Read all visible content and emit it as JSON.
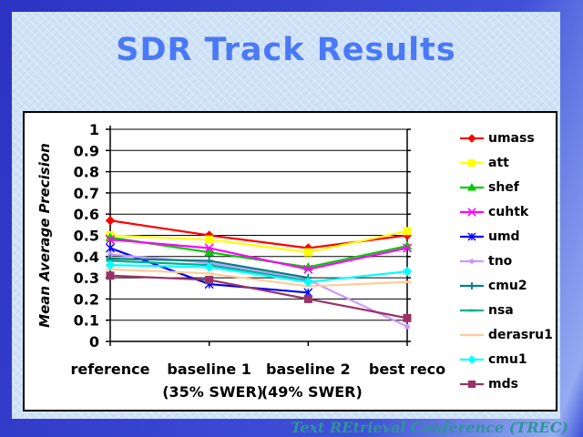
{
  "slide": {
    "title": "SDR Track Results",
    "footer": "Text REtrieval Conference (TREC)"
  },
  "colors": {
    "slide_border_dark": "#2c33c3",
    "slide_border_mid": "#3f50d8",
    "slide_border_light": "#93abf2",
    "content_bg": "#cfe2f6",
    "title_color": "#4a79f7",
    "footer_color": "#2f9595",
    "chart_bg": "#ffffff",
    "axis_color": "#000000"
  },
  "chart_data": {
    "type": "line",
    "title": "",
    "xlabel": "",
    "ylabel": "Mean Average Precision",
    "categories": [
      "reference",
      "baseline 1",
      "baseline 2",
      "best reco"
    ],
    "category_sublabels": [
      "",
      "(35% SWER)",
      "(49% SWER)",
      ""
    ],
    "ylim": [
      0,
      1
    ],
    "ytick_step": 0.1,
    "ytick_labels": [
      "1",
      "0.9",
      "0.8",
      "0.7",
      "0.6",
      "0.5",
      "0.4",
      "0.3",
      "0.2",
      "0.1",
      "0"
    ],
    "grid": true,
    "legend_position": "right",
    "series": [
      {
        "name": "umass",
        "color": "#ff0000",
        "marker": "diamond",
        "values": [
          0.57,
          0.5,
          0.44,
          0.5
        ]
      },
      {
        "name": "att",
        "color": "#ffff00",
        "marker": "square",
        "values": [
          0.5,
          0.48,
          0.42,
          0.52
        ]
      },
      {
        "name": "shef",
        "color": "#00cc00",
        "marker": "triangle",
        "values": [
          0.49,
          0.42,
          0.35,
          0.45
        ]
      },
      {
        "name": "cuhtk",
        "color": "#ff00ff",
        "marker": "x",
        "values": [
          0.48,
          0.44,
          0.34,
          0.44
        ]
      },
      {
        "name": "umd",
        "color": "#0000ff",
        "marker": "asterisk",
        "values": [
          0.44,
          0.27,
          0.23,
          null
        ]
      },
      {
        "name": "tno",
        "color": "#cc99ff",
        "marker": "circle",
        "values": [
          0.41,
          0.37,
          0.29,
          0.07
        ]
      },
      {
        "name": "cmu2",
        "color": "#008080",
        "marker": "plus",
        "values": [
          0.39,
          0.38,
          0.3,
          null
        ]
      },
      {
        "name": "nsa",
        "color": "#00b093",
        "marker": "dash",
        "values": [
          0.38,
          0.36,
          0.285,
          null
        ]
      },
      {
        "name": "derasru1",
        "color": "#ffcc99",
        "marker": "dash",
        "values": [
          0.34,
          0.32,
          0.26,
          0.28
        ]
      },
      {
        "name": "cmu1",
        "color": "#00ffff",
        "marker": "diamond",
        "values": [
          0.36,
          0.35,
          0.28,
          0.33
        ]
      },
      {
        "name": "mds",
        "color": "#993366",
        "marker": "square",
        "values": [
          0.31,
          0.29,
          0.2,
          0.11
        ]
      }
    ]
  }
}
